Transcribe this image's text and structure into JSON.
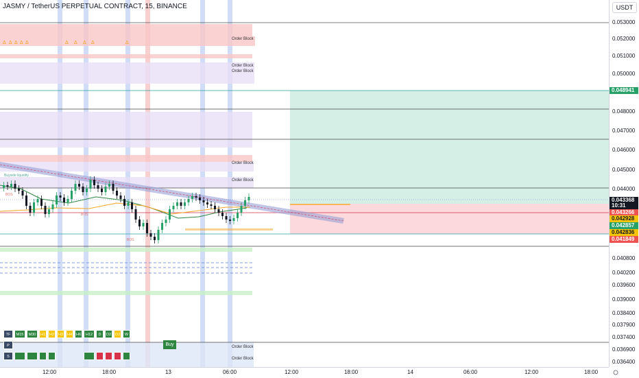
{
  "header": {
    "title": "JASMY / TetherUS PERPETUAL CONTRACT, 15, BINANCE"
  },
  "price_axis": {
    "currency": "USDT",
    "ticks": [
      "0.053000",
      "0.052000",
      "0.051000",
      "0.050000",
      "0.048000",
      "0.047000",
      "0.046000",
      "0.045000",
      "0.044000",
      "0.040800",
      "0.040200",
      "0.039600",
      "0.039000",
      "0.038400",
      "0.037900",
      "0.037400",
      "0.036900",
      "0.036400"
    ],
    "tags": [
      {
        "text": "0.048941",
        "bg": "#26a269",
        "fg": "#ffffff"
      },
      {
        "text": "0.043368",
        "bg": "#131722",
        "fg": "#ffffff"
      },
      {
        "text": "10:31",
        "bg": "#131722",
        "fg": "#ffffff"
      },
      {
        "text": "0.043266",
        "bg": "#ef5350",
        "fg": "#ffffff"
      },
      {
        "text": "0.042928",
        "bg": "#f7c500",
        "fg": "#131722"
      },
      {
        "text": "0.042857",
        "bg": "#26a269",
        "fg": "#ffffff"
      },
      {
        "text": "0.042836",
        "bg": "#f7c500",
        "fg": "#131722"
      },
      {
        "text": "0.041849",
        "bg": "#ef5350",
        "fg": "#ffffff"
      }
    ]
  },
  "time_axis": {
    "labels": [
      "12:00",
      "18:00",
      "13",
      "06:00",
      "12:00",
      "18:00",
      "14",
      "06:00",
      "12:00",
      "18:00"
    ]
  },
  "annotations": {
    "order_block": "Order Block",
    "buyside_liquidity": "Buyside liquidity",
    "bos": "BOS"
  },
  "timeframe_table": {
    "row_labels": [
      "TF",
      "P",
      "S"
    ],
    "timeframes": [
      "M15",
      "M30",
      "H1",
      "H2",
      "H3",
      "H4",
      "H6",
      "H12",
      "D",
      "D2",
      "D3",
      "W"
    ],
    "signal": "Buy"
  },
  "colors": {
    "bull": "#26a269",
    "bear": "#131722",
    "take_profit_zone": "#d5efe6",
    "stop_loss_zone": "#fbd9dc",
    "bearish_ob": "#f9c7c7",
    "neutral_ob": "#e9e0f7",
    "session_blue": "#c9d7f5",
    "session_red": "#f7c8c8",
    "trendline": "#9aa0d6"
  }
}
